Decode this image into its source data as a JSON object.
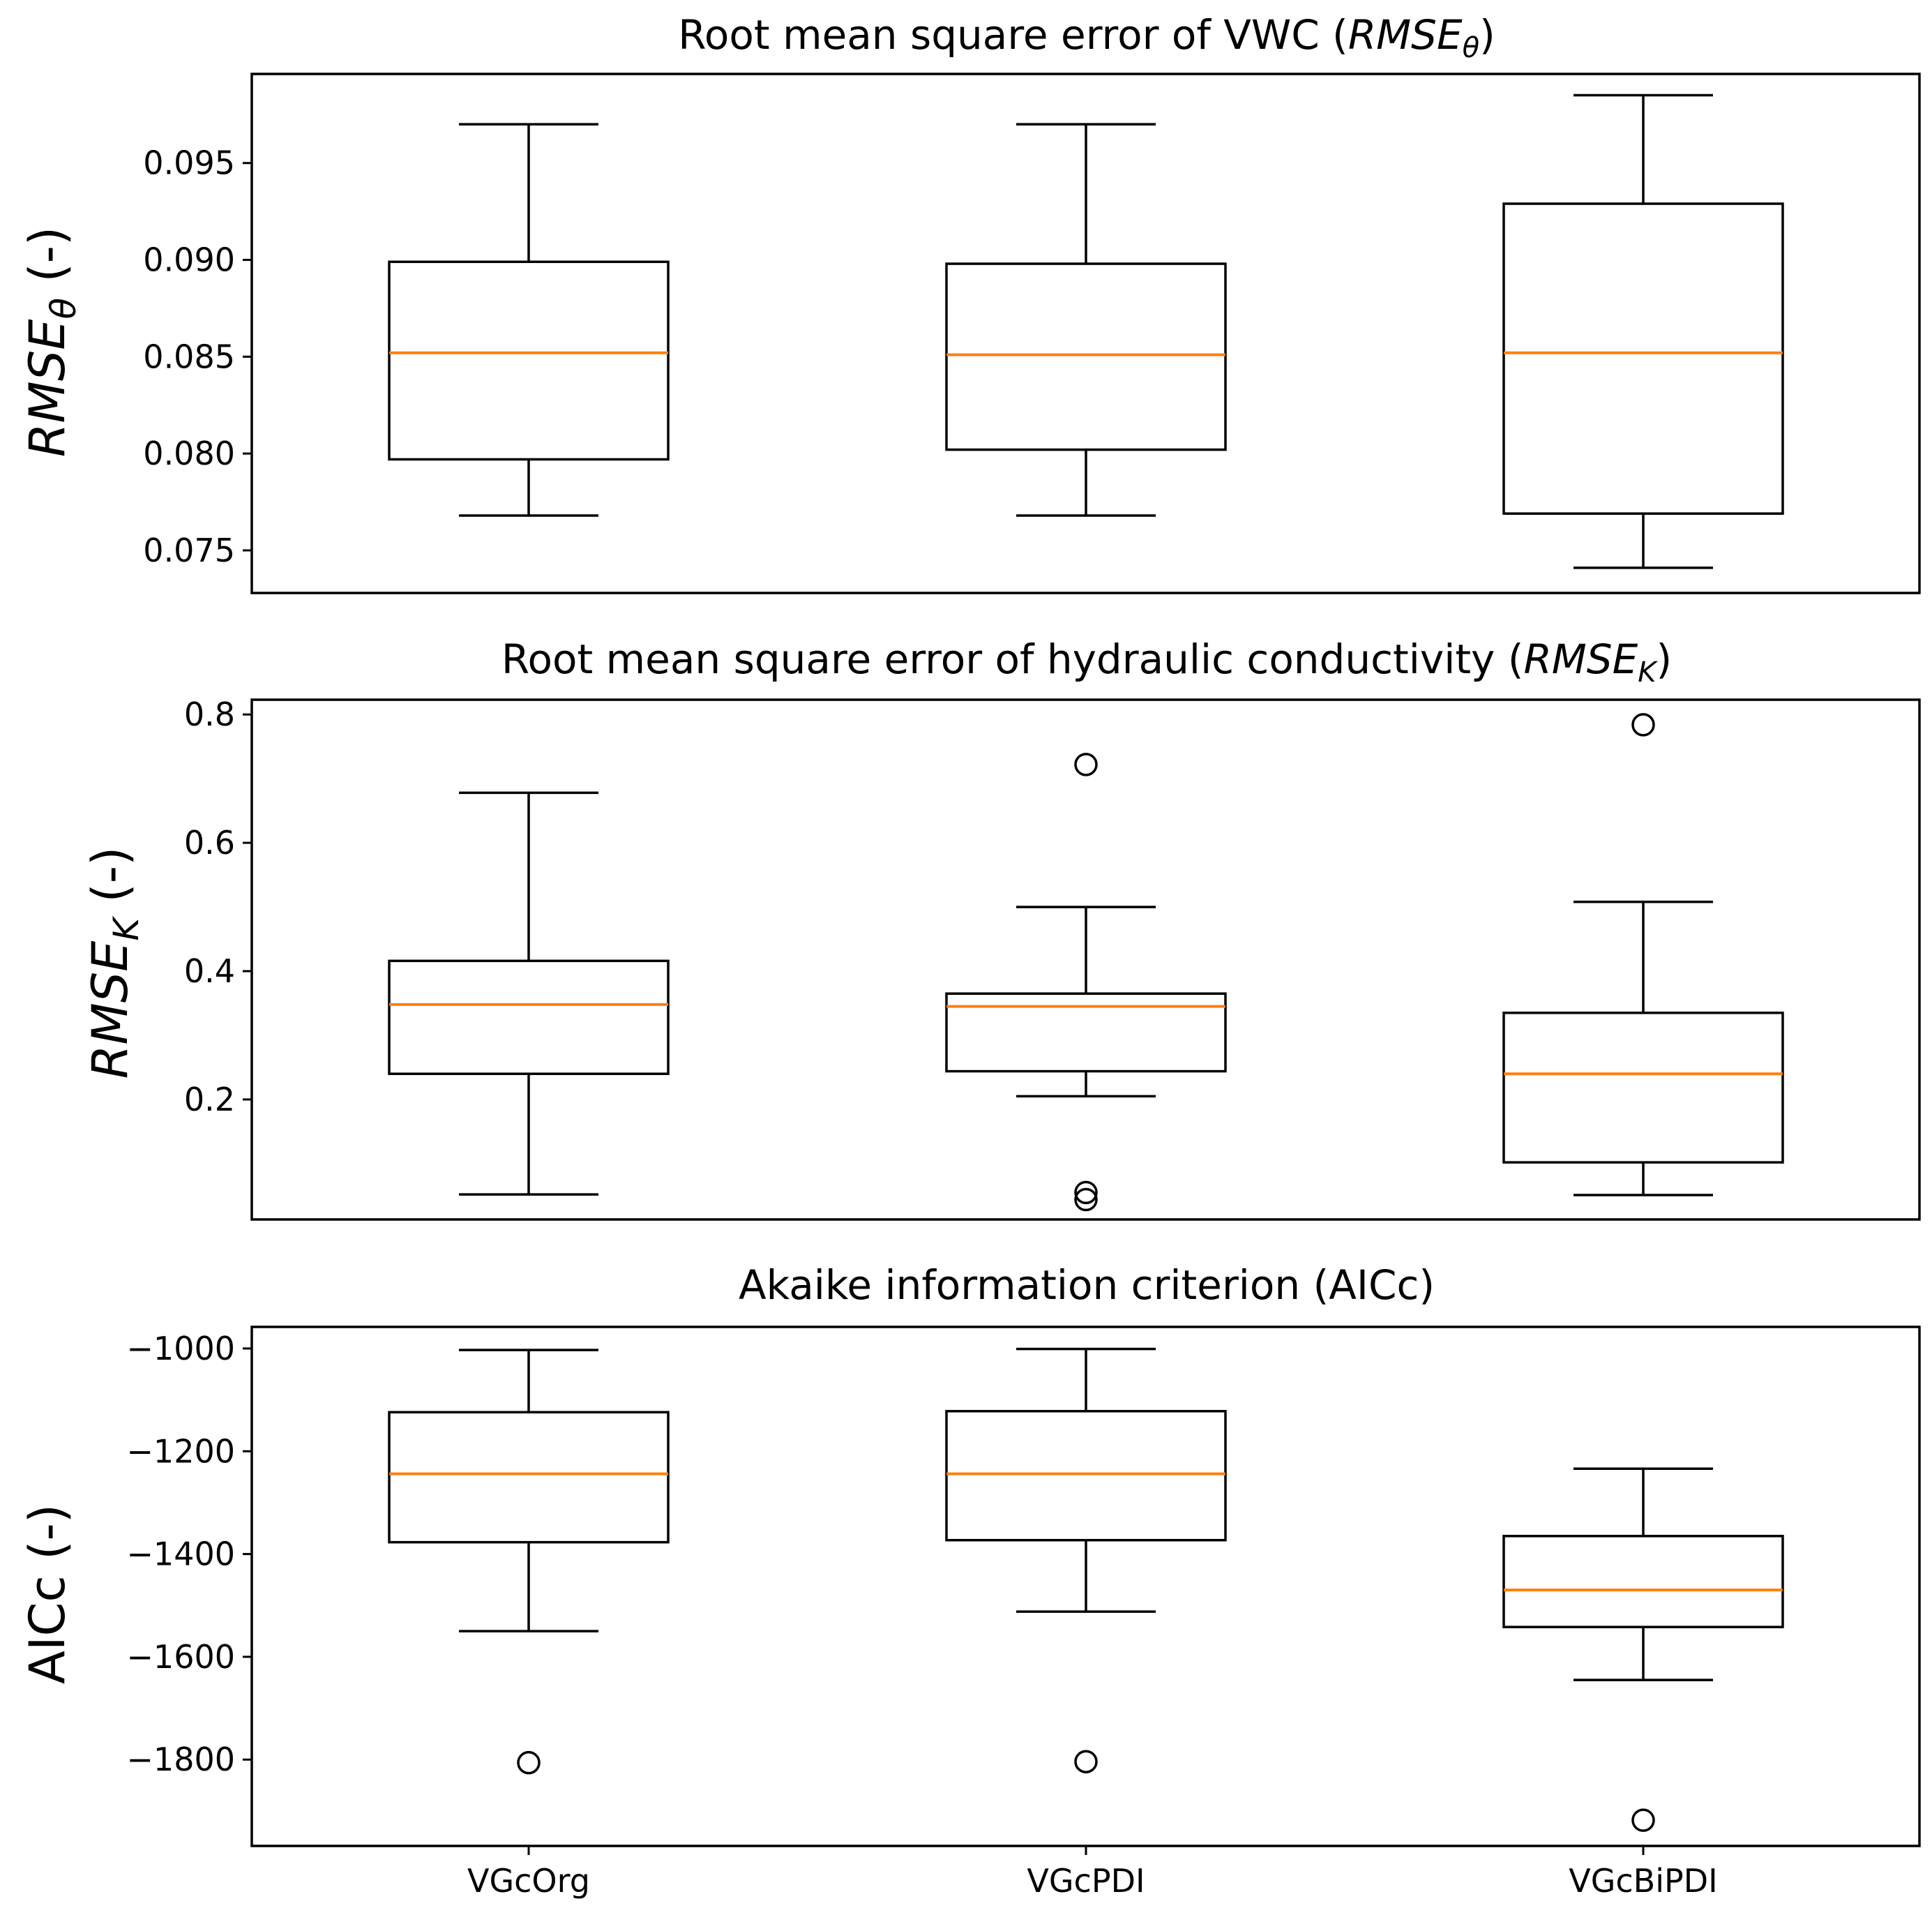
{
  "chart_data": [
    {
      "type": "box",
      "title": "Root mean square error of VWC (",
      "title_math": "RMSE",
      "title_sub": "θ",
      "title_end": ")",
      "ylabel_main": "RMSE",
      "ylabel_sub": "θ",
      "ylabel_end": " (-)",
      "ylim": [
        0.0728,
        0.0996
      ],
      "yticks": [
        0.075,
        0.08,
        0.085,
        0.09,
        0.095
      ],
      "ytick_labels": [
        "0.075",
        "0.080",
        "0.085",
        "0.090",
        "0.095"
      ],
      "categories": [
        "VGcOrg",
        "VGcPDI",
        "VGcBiPDI"
      ],
      "boxes": [
        {
          "name": "VGcOrg",
          "whislo": 0.0768,
          "q1": 0.0797,
          "med": 0.0852,
          "q3": 0.0899,
          "whishi": 0.097,
          "fliers": []
        },
        {
          "name": "VGcPDI",
          "whislo": 0.0768,
          "q1": 0.0802,
          "med": 0.0851,
          "q3": 0.0898,
          "whishi": 0.097,
          "fliers": []
        },
        {
          "name": "VGcBiPDI",
          "whislo": 0.0741,
          "q1": 0.0769,
          "med": 0.0852,
          "q3": 0.0929,
          "whishi": 0.0985,
          "fliers": []
        }
      ]
    },
    {
      "type": "box",
      "title": "Root mean square error of hydraulic conductivity (",
      "title_math": "RMSE",
      "title_sub": "K",
      "title_end": ")",
      "ylabel_main": "RMSE",
      "ylabel_sub": "K",
      "ylabel_end": " (-)",
      "ylim": [
        0.013,
        0.823
      ],
      "yticks": [
        0.2,
        0.4,
        0.6,
        0.8
      ],
      "ytick_labels": [
        "0.2",
        "0.4",
        "0.6",
        "0.8"
      ],
      "categories": [
        "VGcOrg",
        "VGcPDI",
        "VGcBiPDI"
      ],
      "boxes": [
        {
          "name": "VGcOrg",
          "whislo": 0.052,
          "q1": 0.24,
          "med": 0.348,
          "q3": 0.416,
          "whishi": 0.678,
          "fliers": []
        },
        {
          "name": "VGcPDI",
          "whislo": 0.205,
          "q1": 0.244,
          "med": 0.345,
          "q3": 0.365,
          "whishi": 0.5,
          "fliers": [
            0.722,
            0.055,
            0.044
          ]
        },
        {
          "name": "VGcBiPDI",
          "whislo": 0.051,
          "q1": 0.102,
          "med": 0.24,
          "q3": 0.335,
          "whishi": 0.508,
          "fliers": [
            0.784
          ]
        }
      ]
    },
    {
      "type": "box",
      "title": "Akaike information criterion (AICc)",
      "ylabel_main": "AICc (-)",
      "ylim": [
        -1968,
        -958
      ],
      "yticks": [
        -1800,
        -1600,
        -1400,
        -1200,
        -1000
      ],
      "ytick_labels": [
        "−1800",
        "−1600",
        "−1400",
        "−1200",
        "−1000"
      ],
      "categories": [
        "VGcOrg",
        "VGcPDI",
        "VGcBiPDI"
      ],
      "xtick_labels": [
        "VGcOrg",
        "VGcPDI",
        "VGcBiPDI"
      ],
      "boxes": [
        {
          "name": "VGcOrg",
          "whislo": -1550,
          "q1": -1377,
          "med": -1244,
          "q3": -1124,
          "whishi": -1003,
          "fliers": [
            -1806
          ]
        },
        {
          "name": "VGcPDI",
          "whislo": -1512,
          "q1": -1373,
          "med": -1244,
          "q3": -1122,
          "whishi": -1001,
          "fliers": [
            -1804
          ]
        },
        {
          "name": "VGcBiPDI",
          "whislo": -1645,
          "q1": -1542,
          "med": -1470,
          "q3": -1365,
          "whishi": -1234,
          "fliers": [
            -1918
          ]
        }
      ]
    }
  ],
  "colors": {
    "median": "#ff7f0e",
    "box": "#000000",
    "background": "#ffffff"
  }
}
